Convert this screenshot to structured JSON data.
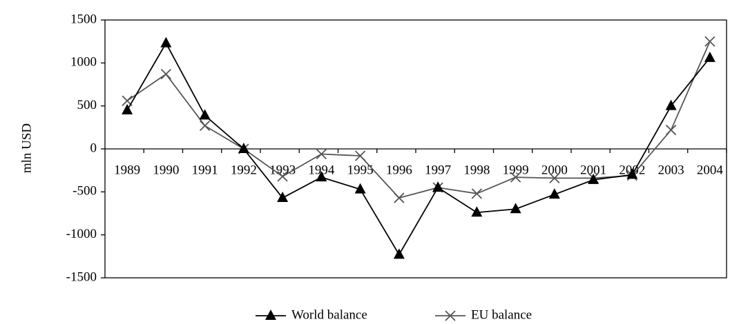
{
  "chart_data": {
    "type": "line",
    "ylabel": "mln USD",
    "categories": [
      "1989",
      "1990",
      "1991",
      "1992",
      "1993",
      "1994",
      "1995",
      "1996",
      "1997",
      "1998",
      "1999",
      "2000",
      "2001",
      "2002",
      "2003",
      "2004"
    ],
    "series": [
      {
        "name": "World balance",
        "color": "#000000",
        "marker": "triangle",
        "values": [
          450,
          1230,
          390,
          0,
          -570,
          -330,
          -470,
          -1230,
          -450,
          -740,
          -700,
          -530,
          -360,
          -300,
          500,
          1060
        ]
      },
      {
        "name": "EU balance",
        "color": "#555555",
        "marker": "x",
        "values": [
          560,
          870,
          270,
          0,
          -320,
          -60,
          -80,
          -570,
          -450,
          -520,
          -330,
          -340,
          -340,
          -310,
          220,
          1250
        ]
      }
    ],
    "ylim": [
      -1500,
      1500
    ],
    "yticks": [
      -1500,
      -1000,
      -500,
      0,
      500,
      1000,
      1500
    ],
    "legend": "bottom"
  }
}
